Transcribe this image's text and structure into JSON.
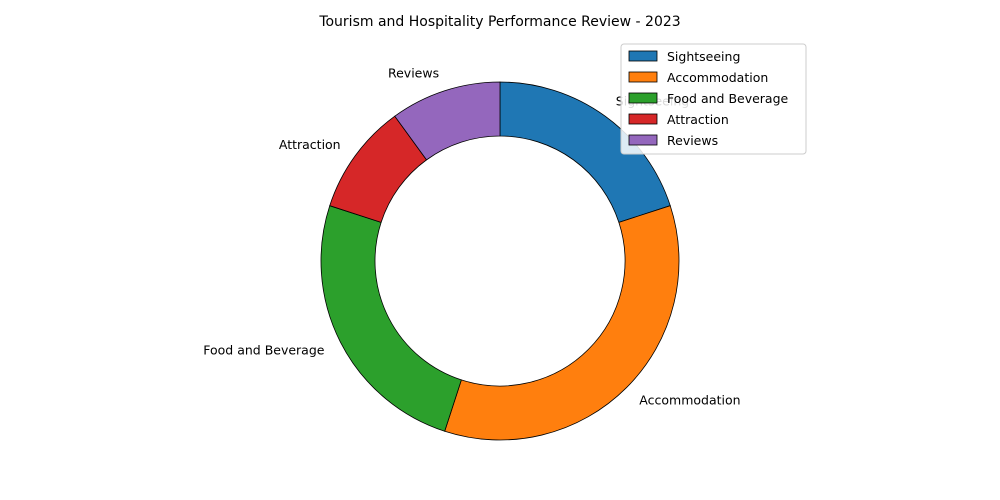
{
  "chart_data": {
    "type": "pie",
    "donut": true,
    "title": "Tourism and Hospitality Performance Review - 2023",
    "categories": [
      "Sightseeing",
      "Accommodation",
      "Food and Beverage",
      "Attraction",
      "Reviews"
    ],
    "values": [
      20,
      35,
      25,
      10,
      10
    ],
    "colors": [
      "#1f77b4",
      "#ff7f0e",
      "#2ca02c",
      "#d62728",
      "#9467bd"
    ],
    "start_angle_deg": 90,
    "direction": "clockwise",
    "legend": {
      "placement": "top-right",
      "entries": [
        "Sightseeing",
        "Accommodation",
        "Food and Beverage",
        "Attraction",
        "Reviews"
      ]
    }
  }
}
